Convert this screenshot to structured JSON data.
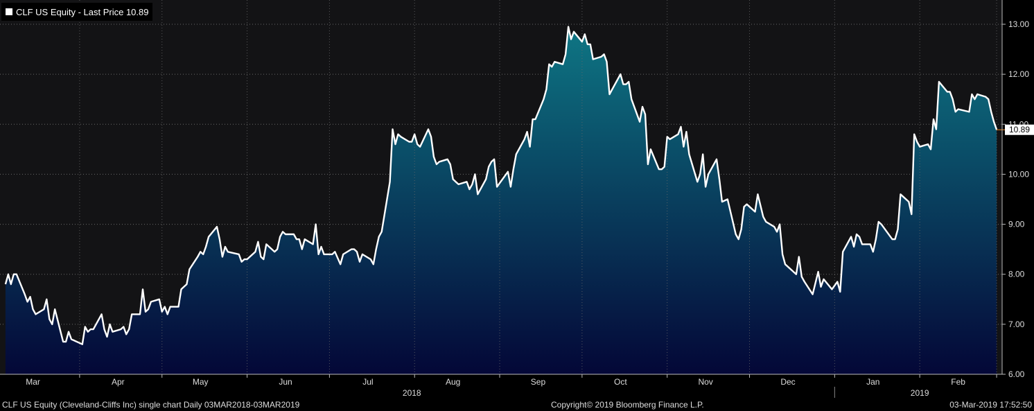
{
  "legend": {
    "label": "CLF US Equity - Last Price 10.89"
  },
  "footer": {
    "left": "CLF US Equity (Cleveland-Cliffs Inc) single chart  Daily 03MAR2018-03MAR2019",
    "center": "Copyright© 2019 Bloomberg Finance L.P.",
    "right": "03-Mar-2019 17:52:50"
  },
  "colors": {
    "background": "#000000",
    "plot_background": "#131315",
    "line": "#ffffff",
    "fill_top": "#0e7684",
    "fill_bottom": "#040737",
    "last_price_marker": "#f08a24"
  },
  "chart_data": {
    "type": "area",
    "title": "CLF US Equity - Last Price 10.89",
    "series": [
      {
        "name": "CLF US Equity - Last Price",
        "points": [
          [
            "2018-03-05",
            7.8
          ],
          [
            "2018-03-06",
            8.0
          ],
          [
            "2018-03-07",
            7.8
          ],
          [
            "2018-03-08",
            8.0
          ],
          [
            "2018-03-09",
            8.0
          ],
          [
            "2018-03-12",
            7.6
          ],
          [
            "2018-03-13",
            7.45
          ],
          [
            "2018-03-14",
            7.55
          ],
          [
            "2018-03-15",
            7.3
          ],
          [
            "2018-03-16",
            7.2
          ],
          [
            "2018-03-19",
            7.3
          ],
          [
            "2018-03-20",
            7.5
          ],
          [
            "2018-03-21",
            7.1
          ],
          [
            "2018-03-22",
            7.0
          ],
          [
            "2018-03-23",
            7.3
          ],
          [
            "2018-03-26",
            6.65
          ],
          [
            "2018-03-27",
            6.65
          ],
          [
            "2018-03-28",
            6.85
          ],
          [
            "2018-03-29",
            6.7
          ],
          [
            "2018-04-02",
            6.6
          ],
          [
            "2018-04-03",
            6.95
          ],
          [
            "2018-04-04",
            6.85
          ],
          [
            "2018-04-05",
            6.9
          ],
          [
            "2018-04-06",
            6.9
          ],
          [
            "2018-04-09",
            7.2
          ],
          [
            "2018-04-10",
            6.9
          ],
          [
            "2018-04-11",
            6.75
          ],
          [
            "2018-04-12",
            7.0
          ],
          [
            "2018-04-13",
            6.85
          ],
          [
            "2018-04-16",
            6.9
          ],
          [
            "2018-04-17",
            6.95
          ],
          [
            "2018-04-18",
            6.8
          ],
          [
            "2018-04-19",
            6.9
          ],
          [
            "2018-04-20",
            7.2
          ],
          [
            "2018-04-23",
            7.2
          ],
          [
            "2018-04-24",
            7.7
          ],
          [
            "2018-04-25",
            7.25
          ],
          [
            "2018-04-26",
            7.3
          ],
          [
            "2018-04-27",
            7.45
          ],
          [
            "2018-04-30",
            7.5
          ],
          [
            "2018-05-01",
            7.25
          ],
          [
            "2018-05-02",
            7.35
          ],
          [
            "2018-05-03",
            7.2
          ],
          [
            "2018-05-04",
            7.35
          ],
          [
            "2018-05-07",
            7.35
          ],
          [
            "2018-05-08",
            7.7
          ],
          [
            "2018-05-09",
            7.75
          ],
          [
            "2018-05-10",
            7.8
          ],
          [
            "2018-05-11",
            8.1
          ],
          [
            "2018-05-14",
            8.35
          ],
          [
            "2018-05-15",
            8.45
          ],
          [
            "2018-05-16",
            8.4
          ],
          [
            "2018-05-17",
            8.55
          ],
          [
            "2018-05-18",
            8.75
          ],
          [
            "2018-05-21",
            8.95
          ],
          [
            "2018-05-22",
            8.7
          ],
          [
            "2018-05-23",
            8.35
          ],
          [
            "2018-05-24",
            8.55
          ],
          [
            "2018-05-25",
            8.45
          ],
          [
            "2018-05-29",
            8.4
          ],
          [
            "2018-05-30",
            8.25
          ],
          [
            "2018-05-31",
            8.3
          ],
          [
            "2018-06-01",
            8.3
          ],
          [
            "2018-06-04",
            8.45
          ],
          [
            "2018-06-05",
            8.65
          ],
          [
            "2018-06-06",
            8.35
          ],
          [
            "2018-06-07",
            8.3
          ],
          [
            "2018-06-08",
            8.6
          ],
          [
            "2018-06-11",
            8.45
          ],
          [
            "2018-06-12",
            8.5
          ],
          [
            "2018-06-13",
            8.75
          ],
          [
            "2018-06-14",
            8.85
          ],
          [
            "2018-06-15",
            8.8
          ],
          [
            "2018-06-18",
            8.8
          ],
          [
            "2018-06-19",
            8.7
          ],
          [
            "2018-06-20",
            8.7
          ],
          [
            "2018-06-21",
            8.5
          ],
          [
            "2018-06-22",
            8.7
          ],
          [
            "2018-06-25",
            8.6
          ],
          [
            "2018-06-26",
            9.0
          ],
          [
            "2018-06-27",
            8.4
          ],
          [
            "2018-06-28",
            8.55
          ],
          [
            "2018-06-29",
            8.4
          ],
          [
            "2018-07-02",
            8.4
          ],
          [
            "2018-07-03",
            8.45
          ],
          [
            "2018-07-05",
            8.2
          ],
          [
            "2018-07-06",
            8.4
          ],
          [
            "2018-07-09",
            8.5
          ],
          [
            "2018-07-10",
            8.5
          ],
          [
            "2018-07-11",
            8.45
          ],
          [
            "2018-07-12",
            8.25
          ],
          [
            "2018-07-13",
            8.4
          ],
          [
            "2018-07-16",
            8.3
          ],
          [
            "2018-07-17",
            8.2
          ],
          [
            "2018-07-18",
            8.5
          ],
          [
            "2018-07-19",
            8.75
          ],
          [
            "2018-07-20",
            8.85
          ],
          [
            "2018-07-23",
            9.85
          ],
          [
            "2018-07-24",
            10.9
          ],
          [
            "2018-07-25",
            10.6
          ],
          [
            "2018-07-26",
            10.8
          ],
          [
            "2018-07-27",
            10.75
          ],
          [
            "2018-07-30",
            10.65
          ],
          [
            "2018-07-31",
            10.65
          ],
          [
            "2018-08-01",
            10.8
          ],
          [
            "2018-08-02",
            10.6
          ],
          [
            "2018-08-03",
            10.55
          ],
          [
            "2018-08-06",
            10.9
          ],
          [
            "2018-08-07",
            10.75
          ],
          [
            "2018-08-08",
            10.35
          ],
          [
            "2018-08-09",
            10.2
          ],
          [
            "2018-08-10",
            10.25
          ],
          [
            "2018-08-13",
            10.3
          ],
          [
            "2018-08-14",
            10.2
          ],
          [
            "2018-08-15",
            9.9
          ],
          [
            "2018-08-16",
            9.85
          ],
          [
            "2018-08-17",
            9.8
          ],
          [
            "2018-08-20",
            9.85
          ],
          [
            "2018-08-21",
            9.7
          ],
          [
            "2018-08-22",
            9.8
          ],
          [
            "2018-08-23",
            10.0
          ],
          [
            "2018-08-24",
            9.6
          ],
          [
            "2018-08-27",
            9.9
          ],
          [
            "2018-08-28",
            10.15
          ],
          [
            "2018-08-29",
            10.25
          ],
          [
            "2018-08-30",
            10.3
          ],
          [
            "2018-08-31",
            9.75
          ],
          [
            "2018-09-04",
            10.05
          ],
          [
            "2018-09-05",
            9.75
          ],
          [
            "2018-09-06",
            10.1
          ],
          [
            "2018-09-07",
            10.4
          ],
          [
            "2018-09-10",
            10.7
          ],
          [
            "2018-09-11",
            10.85
          ],
          [
            "2018-09-12",
            10.55
          ],
          [
            "2018-09-13",
            11.1
          ],
          [
            "2018-09-14",
            11.1
          ],
          [
            "2018-09-17",
            11.5
          ],
          [
            "2018-09-18",
            11.7
          ],
          [
            "2018-09-19",
            12.2
          ],
          [
            "2018-09-20",
            12.15
          ],
          [
            "2018-09-21",
            12.25
          ],
          [
            "2018-09-24",
            12.2
          ],
          [
            "2018-09-25",
            12.4
          ],
          [
            "2018-09-26",
            12.95
          ],
          [
            "2018-09-27",
            12.7
          ],
          [
            "2018-09-28",
            12.85
          ],
          [
            "2018-10-01",
            12.65
          ],
          [
            "2018-10-02",
            12.8
          ],
          [
            "2018-10-03",
            12.6
          ],
          [
            "2018-10-04",
            12.6
          ],
          [
            "2018-10-05",
            12.3
          ],
          [
            "2018-10-08",
            12.35
          ],
          [
            "2018-10-09",
            12.4
          ],
          [
            "2018-10-10",
            12.25
          ],
          [
            "2018-10-11",
            11.6
          ],
          [
            "2018-10-12",
            11.7
          ],
          [
            "2018-10-15",
            12.0
          ],
          [
            "2018-10-16",
            11.8
          ],
          [
            "2018-10-17",
            11.8
          ],
          [
            "2018-10-18",
            11.85
          ],
          [
            "2018-10-19",
            11.5
          ],
          [
            "2018-10-22",
            11.05
          ],
          [
            "2018-10-23",
            11.35
          ],
          [
            "2018-10-24",
            11.2
          ],
          [
            "2018-10-25",
            10.2
          ],
          [
            "2018-10-26",
            10.5
          ],
          [
            "2018-10-29",
            10.1
          ],
          [
            "2018-10-30",
            10.1
          ],
          [
            "2018-10-31",
            10.15
          ],
          [
            "2018-11-01",
            10.75
          ],
          [
            "2018-11-02",
            10.7
          ],
          [
            "2018-11-05",
            10.8
          ],
          [
            "2018-11-06",
            10.95
          ],
          [
            "2018-11-07",
            10.55
          ],
          [
            "2018-11-08",
            10.85
          ],
          [
            "2018-11-09",
            10.4
          ],
          [
            "2018-11-12",
            9.85
          ],
          [
            "2018-11-13",
            10.0
          ],
          [
            "2018-11-14",
            10.4
          ],
          [
            "2018-11-15",
            9.75
          ],
          [
            "2018-11-16",
            10.0
          ],
          [
            "2018-11-19",
            10.3
          ],
          [
            "2018-11-20",
            9.9
          ],
          [
            "2018-11-21",
            9.45
          ],
          [
            "2018-11-23",
            9.5
          ],
          [
            "2018-11-26",
            8.8
          ],
          [
            "2018-11-27",
            8.7
          ],
          [
            "2018-11-28",
            8.9
          ],
          [
            "2018-11-29",
            9.35
          ],
          [
            "2018-11-30",
            9.4
          ],
          [
            "2018-12-03",
            9.25
          ],
          [
            "2018-12-04",
            9.6
          ],
          [
            "2018-12-06",
            9.15
          ],
          [
            "2018-12-07",
            9.05
          ],
          [
            "2018-12-10",
            8.95
          ],
          [
            "2018-12-11",
            8.85
          ],
          [
            "2018-12-12",
            9.0
          ],
          [
            "2018-12-13",
            8.4
          ],
          [
            "2018-12-14",
            8.2
          ],
          [
            "2018-12-17",
            8.05
          ],
          [
            "2018-12-18",
            8.0
          ],
          [
            "2018-12-19",
            8.35
          ],
          [
            "2018-12-20",
            7.95
          ],
          [
            "2018-12-21",
            7.85
          ],
          [
            "2018-12-24",
            7.6
          ],
          [
            "2018-12-26",
            8.05
          ],
          [
            "2018-12-27",
            7.75
          ],
          [
            "2018-12-28",
            7.9
          ],
          [
            "2018-12-31",
            7.7
          ],
          [
            "2019-01-02",
            7.85
          ],
          [
            "2019-01-03",
            7.65
          ],
          [
            "2019-01-04",
            8.45
          ],
          [
            "2019-01-07",
            8.75
          ],
          [
            "2019-01-08",
            8.55
          ],
          [
            "2019-01-09",
            8.8
          ],
          [
            "2019-01-10",
            8.75
          ],
          [
            "2019-01-11",
            8.6
          ],
          [
            "2019-01-14",
            8.6
          ],
          [
            "2019-01-15",
            8.45
          ],
          [
            "2019-01-16",
            8.7
          ],
          [
            "2019-01-17",
            9.05
          ],
          [
            "2019-01-18",
            9.0
          ],
          [
            "2019-01-22",
            8.7
          ],
          [
            "2019-01-23",
            8.7
          ],
          [
            "2019-01-24",
            8.9
          ],
          [
            "2019-01-25",
            9.6
          ],
          [
            "2019-01-28",
            9.45
          ],
          [
            "2019-01-29",
            9.2
          ],
          [
            "2019-01-30",
            10.8
          ],
          [
            "2019-01-31",
            10.65
          ],
          [
            "2019-02-01",
            10.55
          ],
          [
            "2019-02-04",
            10.6
          ],
          [
            "2019-02-05",
            10.5
          ],
          [
            "2019-02-06",
            11.1
          ],
          [
            "2019-02-07",
            10.9
          ],
          [
            "2019-02-08",
            11.85
          ],
          [
            "2019-02-11",
            11.65
          ],
          [
            "2019-02-12",
            11.65
          ],
          [
            "2019-02-13",
            11.5
          ],
          [
            "2019-02-14",
            11.25
          ],
          [
            "2019-02-15",
            11.3
          ],
          [
            "2019-02-19",
            11.25
          ],
          [
            "2019-02-20",
            11.6
          ],
          [
            "2019-02-21",
            11.5
          ],
          [
            "2019-02-22",
            11.6
          ],
          [
            "2019-02-25",
            11.55
          ],
          [
            "2019-02-26",
            11.5
          ],
          [
            "2019-02-27",
            11.25
          ],
          [
            "2019-02-28",
            11.05
          ],
          [
            "2019-03-01",
            10.89
          ]
        ]
      }
    ],
    "last_price": 10.89,
    "last_price_label": "10.89",
    "ylim": [
      6.0,
      13.0
    ],
    "y_ticks": [
      "6.00",
      "7.00",
      "8.00",
      "9.00",
      "10.00",
      "11.00",
      "12.00",
      "13.00"
    ],
    "y_axis_position": "right",
    "month_ticks": [
      {
        "label": "Mar",
        "date": "2018-03-15"
      },
      {
        "label": "Apr",
        "date": "2018-04-15"
      },
      {
        "label": "May",
        "date": "2018-05-15"
      },
      {
        "label": "Jun",
        "date": "2018-06-15"
      },
      {
        "label": "Jul",
        "date": "2018-07-15"
      },
      {
        "label": "Aug",
        "date": "2018-08-15"
      },
      {
        "label": "Sep",
        "date": "2018-09-15"
      },
      {
        "label": "Oct",
        "date": "2018-10-15"
      },
      {
        "label": "Nov",
        "date": "2018-11-15"
      },
      {
        "label": "Dec",
        "date": "2018-12-15"
      },
      {
        "label": "Jan",
        "date": "2019-01-15"
      },
      {
        "label": "Feb",
        "date": "2019-02-15"
      }
    ],
    "year_labels": [
      {
        "label": "2018",
        "date": "2018-07-31"
      },
      {
        "label": "2019",
        "date": "2019-02-01"
      }
    ],
    "xlim": [
      "2018-03-03",
      "2019-03-03"
    ],
    "grid": true
  }
}
